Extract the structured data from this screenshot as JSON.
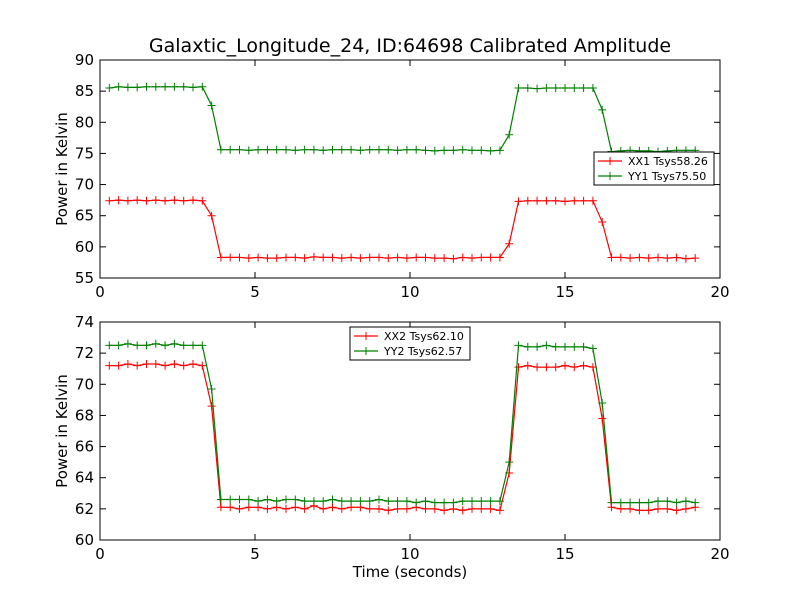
{
  "figure": {
    "title": "Galaxtic_Longitude_24, ID:64698 Calibrated Amplitude"
  },
  "chart_data": [
    {
      "type": "line",
      "title": "Galaxtic_Longitude_24, ID:64698 Calibrated Amplitude",
      "xlabel": "",
      "ylabel": "Power in Kelvin",
      "xlim": [
        0,
        20
      ],
      "ylim": [
        55,
        90
      ],
      "xticks": [
        "0",
        "5",
        "10",
        "15",
        "20"
      ],
      "yticks": [
        "55",
        "60",
        "65",
        "70",
        "75",
        "80",
        "85",
        "90"
      ],
      "legend": "center-right",
      "x": [
        0.3,
        0.6,
        0.9,
        1.2,
        1.5,
        1.8,
        2.1,
        2.4,
        2.7,
        3.0,
        3.3,
        3.6,
        3.9,
        4.2,
        4.5,
        4.8,
        5.1,
        5.4,
        5.7,
        6.0,
        6.3,
        6.6,
        6.9,
        7.2,
        7.5,
        7.8,
        8.1,
        8.4,
        8.7,
        9.0,
        9.3,
        9.6,
        9.9,
        10.2,
        10.5,
        10.8,
        11.1,
        11.4,
        11.7,
        12.0,
        12.3,
        12.6,
        12.9,
        13.2,
        13.5,
        13.8,
        14.1,
        14.4,
        14.7,
        15.0,
        15.3,
        15.6,
        15.9,
        16.2,
        16.5,
        16.8,
        17.1,
        17.4,
        17.7,
        18.0,
        18.3,
        18.6,
        18.9,
        19.2
      ],
      "series": [
        {
          "name": "XX1 Tsys58.26",
          "color": "#ff0000",
          "values": [
            67.4,
            67.5,
            67.4,
            67.5,
            67.4,
            67.5,
            67.4,
            67.5,
            67.4,
            67.5,
            67.4,
            65.0,
            58.3,
            58.3,
            58.3,
            58.2,
            58.3,
            58.2,
            58.2,
            58.3,
            58.3,
            58.2,
            58.4,
            58.3,
            58.3,
            58.2,
            58.3,
            58.2,
            58.3,
            58.3,
            58.2,
            58.3,
            58.2,
            58.3,
            58.3,
            58.2,
            58.2,
            58.1,
            58.3,
            58.2,
            58.3,
            58.3,
            58.3,
            60.5,
            67.3,
            67.4,
            67.4,
            67.4,
            67.4,
            67.3,
            67.4,
            67.4,
            67.4,
            64.0,
            58.3,
            58.3,
            58.2,
            58.3,
            58.2,
            58.3,
            58.2,
            58.3,
            58.1,
            58.2
          ]
        },
        {
          "name": "YY1 Tsys75.50",
          "color": "#008000",
          "values": [
            85.5,
            85.7,
            85.6,
            85.6,
            85.7,
            85.7,
            85.7,
            85.7,
            85.7,
            85.6,
            85.7,
            82.7,
            75.6,
            75.6,
            75.6,
            75.5,
            75.6,
            75.6,
            75.6,
            75.6,
            75.5,
            75.6,
            75.6,
            75.5,
            75.6,
            75.6,
            75.6,
            75.5,
            75.6,
            75.6,
            75.6,
            75.5,
            75.6,
            75.6,
            75.5,
            75.4,
            75.5,
            75.5,
            75.6,
            75.5,
            75.5,
            75.4,
            75.5,
            78.0,
            85.5,
            85.5,
            85.4,
            85.5,
            85.5,
            85.5,
            85.5,
            85.5,
            85.5,
            82.0,
            75.3,
            75.4,
            75.5,
            75.4,
            75.4,
            75.3,
            75.4,
            75.5,
            75.5,
            75.5
          ]
        }
      ]
    },
    {
      "type": "line",
      "title": "",
      "xlabel": "Time (seconds)",
      "ylabel": "Power in Kelvin",
      "xlim": [
        0,
        20
      ],
      "ylim": [
        60,
        74
      ],
      "xticks": [
        "0",
        "5",
        "10",
        "15",
        "20"
      ],
      "yticks": [
        "60",
        "62",
        "64",
        "66",
        "68",
        "70",
        "72",
        "74"
      ],
      "legend": "upper-center",
      "x": [
        0.3,
        0.6,
        0.9,
        1.2,
        1.5,
        1.8,
        2.1,
        2.4,
        2.7,
        3.0,
        3.3,
        3.6,
        3.9,
        4.2,
        4.5,
        4.8,
        5.1,
        5.4,
        5.7,
        6.0,
        6.3,
        6.6,
        6.9,
        7.2,
        7.5,
        7.8,
        8.1,
        8.4,
        8.7,
        9.0,
        9.3,
        9.6,
        9.9,
        10.2,
        10.5,
        10.8,
        11.1,
        11.4,
        11.7,
        12.0,
        12.3,
        12.6,
        12.9,
        13.2,
        13.5,
        13.8,
        14.1,
        14.4,
        14.7,
        15.0,
        15.3,
        15.6,
        15.9,
        16.2,
        16.5,
        16.8,
        17.1,
        17.4,
        17.7,
        18.0,
        18.3,
        18.6,
        18.9,
        19.2
      ],
      "series": [
        {
          "name": "XX2 Tsys62.10",
          "color": "#ff0000",
          "values": [
            71.2,
            71.2,
            71.3,
            71.2,
            71.3,
            71.3,
            71.2,
            71.3,
            71.2,
            71.3,
            71.2,
            68.6,
            62.1,
            62.1,
            62.0,
            62.1,
            62.1,
            62.0,
            62.1,
            62.0,
            62.1,
            62.0,
            62.2,
            62.0,
            62.1,
            62.0,
            62.1,
            62.1,
            62.0,
            62.0,
            61.9,
            62.0,
            62.0,
            62.1,
            62.0,
            62.0,
            61.9,
            62.0,
            61.9,
            62.0,
            62.0,
            62.0,
            61.9,
            64.3,
            71.1,
            71.2,
            71.1,
            71.1,
            71.1,
            71.2,
            71.1,
            71.2,
            71.1,
            67.8,
            62.1,
            62.0,
            62.0,
            61.9,
            61.9,
            62.0,
            62.0,
            61.9,
            62.0,
            62.1
          ]
        },
        {
          "name": "YY2 Tsys62.57",
          "color": "#008000",
          "values": [
            72.5,
            72.5,
            72.6,
            72.5,
            72.5,
            72.6,
            72.5,
            72.6,
            72.5,
            72.5,
            72.5,
            69.7,
            62.6,
            62.6,
            62.6,
            62.6,
            62.5,
            62.6,
            62.5,
            62.6,
            62.6,
            62.5,
            62.5,
            62.5,
            62.6,
            62.5,
            62.5,
            62.5,
            62.5,
            62.6,
            62.5,
            62.5,
            62.5,
            62.4,
            62.5,
            62.4,
            62.4,
            62.4,
            62.5,
            62.5,
            62.5,
            62.5,
            62.5,
            65.0,
            72.5,
            72.4,
            72.4,
            72.5,
            72.4,
            72.4,
            72.4,
            72.4,
            72.3,
            68.8,
            62.4,
            62.4,
            62.4,
            62.4,
            62.4,
            62.5,
            62.5,
            62.4,
            62.5,
            62.4
          ]
        }
      ]
    }
  ]
}
